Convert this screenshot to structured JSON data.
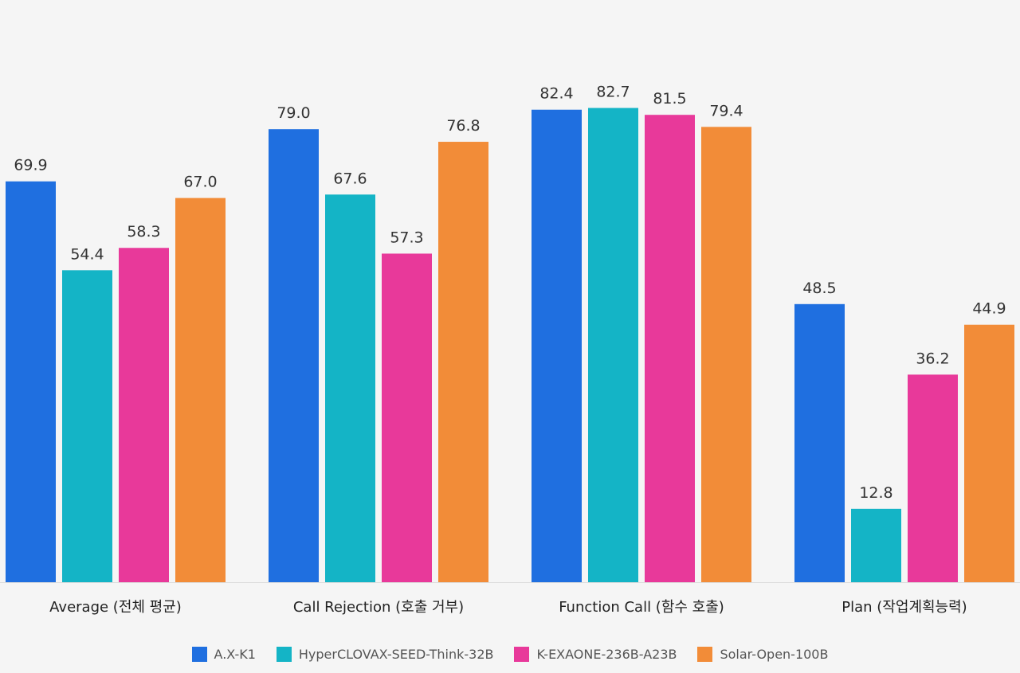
{
  "chart_data": {
    "type": "bar",
    "title": "",
    "xlabel": "",
    "ylabel": "",
    "ylim": [
      0,
      85
    ],
    "grid": false,
    "legend_position": "bottom-center",
    "categories": [
      "Average (전체 평균)",
      "Call Rejection (호출 거부)",
      "Function Call (함수 호출)",
      "Plan (작업계획능력)"
    ],
    "series": [
      {
        "name": "A.X-K1",
        "color": "#1f6fe0",
        "values": [
          69.9,
          79.0,
          82.4,
          48.5
        ],
        "labels": [
          "69.9",
          "79.0",
          "82.4",
          "48.5"
        ]
      },
      {
        "name": "HyperCLOVAX-SEED-Think-32B",
        "color": "#14b4c6",
        "values": [
          54.4,
          67.6,
          82.7,
          12.8
        ],
        "labels": [
          "54.4",
          "67.6",
          "82.7",
          "12.8"
        ]
      },
      {
        "name": "K-EXAONE-236B-A23B",
        "color": "#e8399a",
        "values": [
          58.3,
          57.3,
          81.5,
          36.2
        ],
        "labels": [
          "58.3",
          "57.3",
          "81.5",
          "36.2"
        ]
      },
      {
        "name": "Solar-Open-100B",
        "color": "#f28c38",
        "values": [
          67.0,
          76.8,
          79.4,
          44.9
        ],
        "labels": [
          "67.0",
          "76.8",
          "79.4",
          "44.9"
        ]
      }
    ]
  }
}
